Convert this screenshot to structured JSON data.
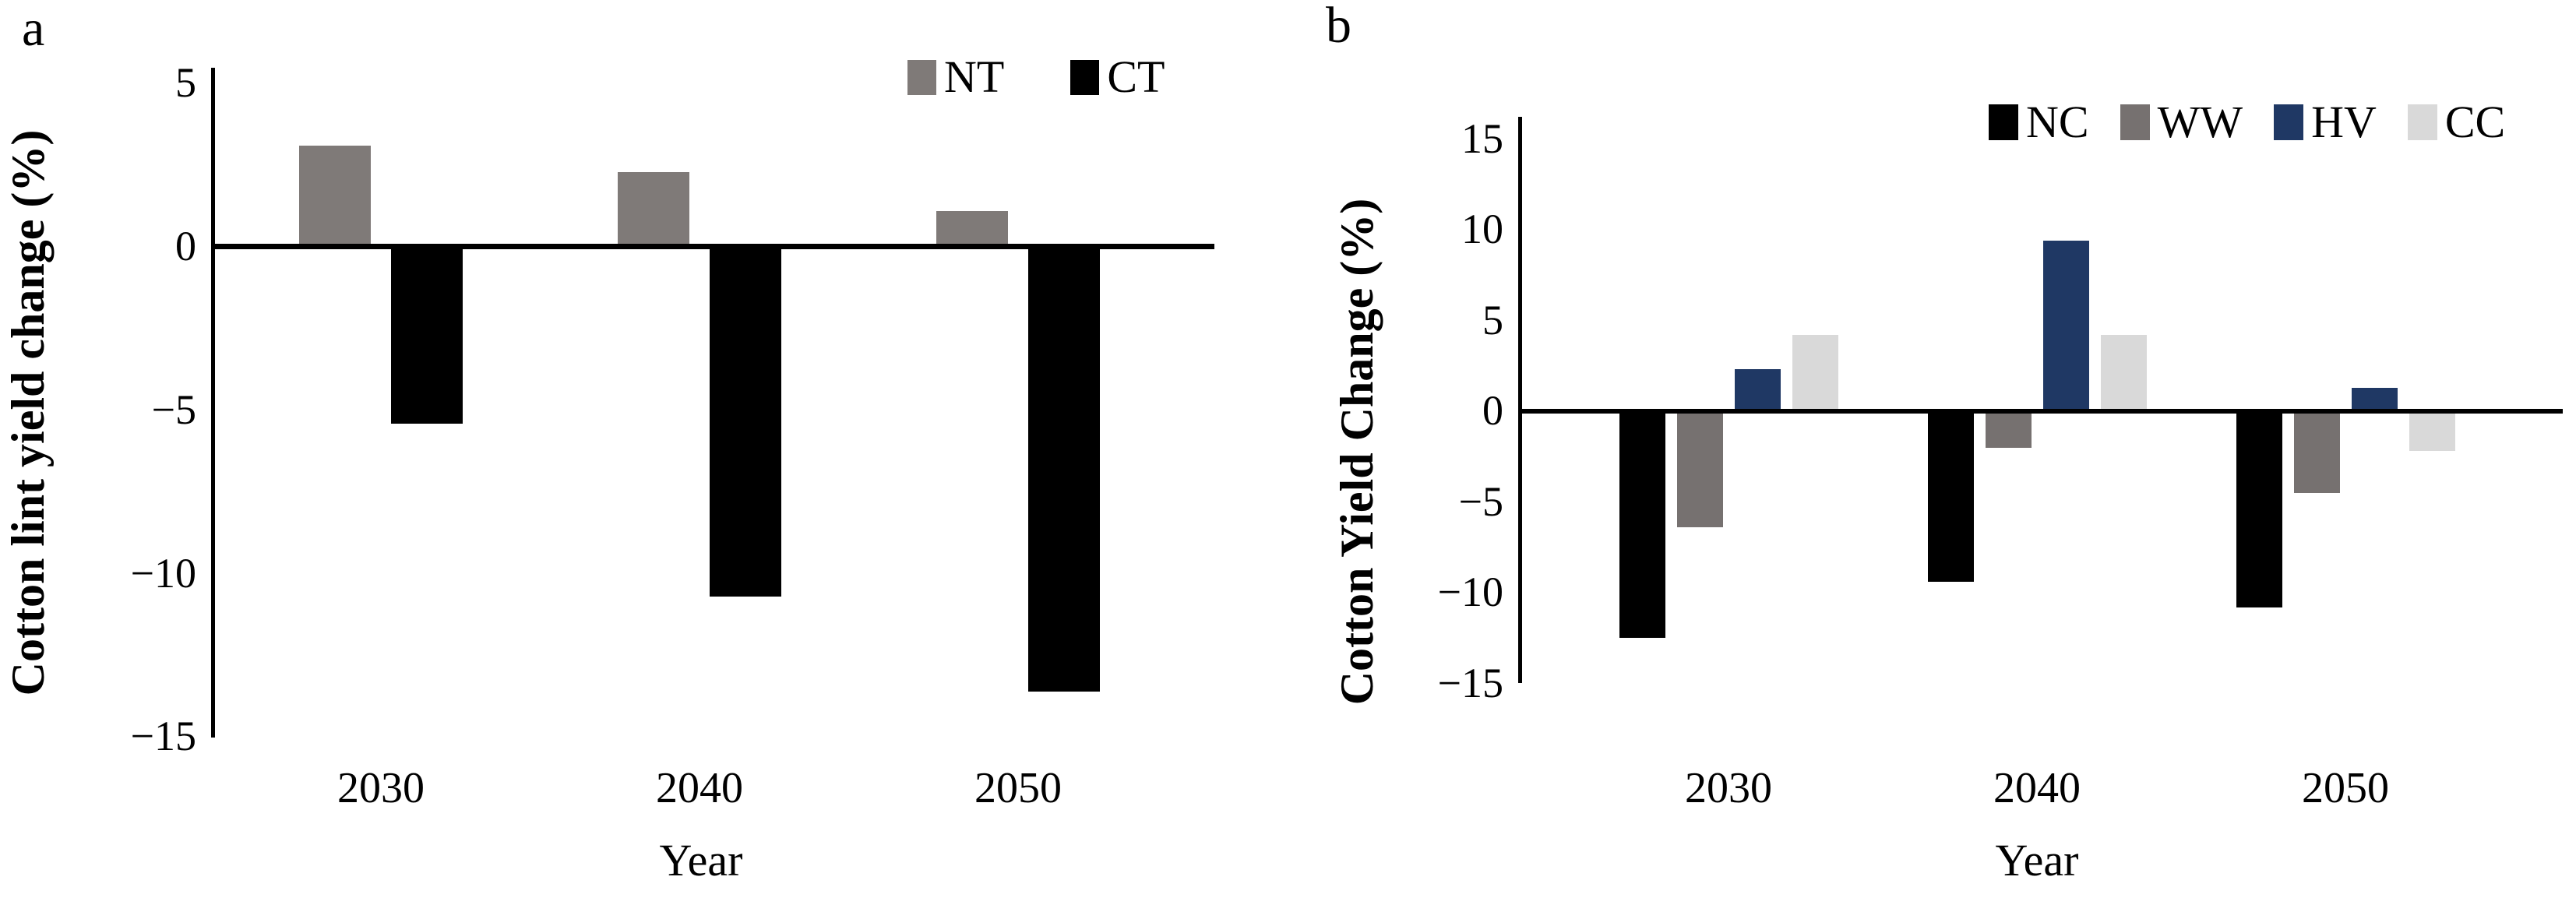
{
  "chart_data": [
    {
      "type": "bar",
      "panel_label": "a",
      "title": "",
      "xlabel": "Year",
      "ylabel": "Cotton lint yield change (%)",
      "categories": [
        "2030",
        "2040",
        "2050"
      ],
      "series": [
        {
          "name": "NT",
          "color": "#7f7a78",
          "values": [
            3.1,
            2.3,
            1.1
          ]
        },
        {
          "name": "CT",
          "color": "#000000",
          "values": [
            -5.4,
            -10.7,
            -13.6
          ]
        }
      ],
      "ylim": [
        -15,
        5
      ],
      "yticks": [
        5,
        0,
        -5,
        -10,
        -15
      ],
      "grid": false,
      "legend_position": "top-right"
    },
    {
      "type": "bar",
      "panel_label": "b",
      "title": "",
      "xlabel": "Year",
      "ylabel": "Cotton Yield Change (%)",
      "categories": [
        "2030",
        "2040",
        "2050"
      ],
      "series": [
        {
          "name": "NC",
          "color": "#000000",
          "values": [
            -12.5,
            -9.4,
            -10.8
          ]
        },
        {
          "name": "WW",
          "color": "#767170",
          "values": [
            -6.4,
            -2.0,
            -4.5
          ]
        },
        {
          "name": "HV",
          "color": "#1f3864",
          "values": [
            2.3,
            9.4,
            1.3
          ]
        },
        {
          "name": "CC",
          "color": "#d9d9d9",
          "values": [
            4.2,
            4.2,
            -2.2
          ]
        }
      ],
      "ylim": [
        -15,
        15
      ],
      "yticks": [
        15,
        10,
        5,
        0,
        -5,
        -10,
        -15
      ],
      "grid": false,
      "legend_position": "top-right"
    }
  ]
}
